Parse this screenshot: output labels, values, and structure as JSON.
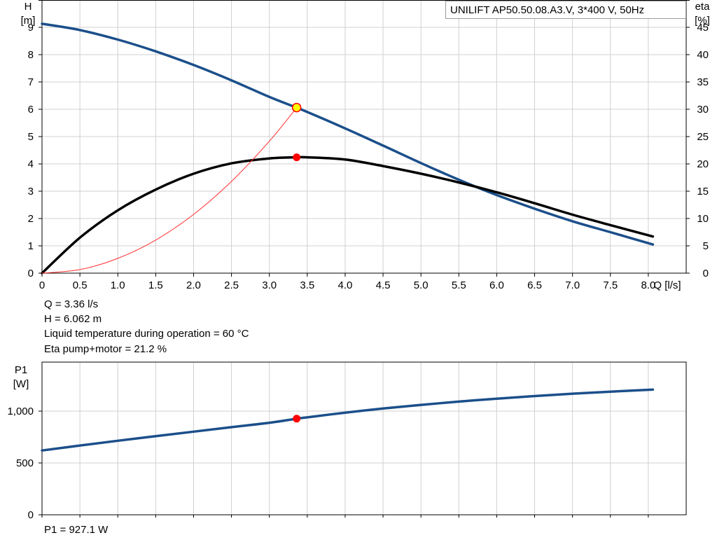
{
  "legend": {
    "pump_label": "UNILIFT  AP50.50.08.A3.V,  3*400 V,  50Hz"
  },
  "info": {
    "q": "Q = 3.36 l/s",
    "h": "H = 6.062 m",
    "temp": "Liquid temperature during operation = 60 °C",
    "eta": "Eta pump+motor = 21.2 %",
    "p1": "P1 = 927.1 W"
  },
  "colors": {
    "head": "#1b4f8a",
    "efficiency": "#000000",
    "system": "#ff3030",
    "grid": "#d0d0d0",
    "duty_marker": "#ff0000",
    "duty_head_marker": "#ffff00"
  },
  "chart_data": [
    {
      "type": "line",
      "name": "head-efficiency",
      "x_label_text": "Q [l/s]",
      "y_left_label_line1": "H",
      "y_left_label_line2": "[m]",
      "y_right_label_line1": "eta",
      "y_right_label_line2": "[%]",
      "xlim": [
        0,
        8.5
      ],
      "ylim_left": [
        0,
        10
      ],
      "ylim_right": [
        0,
        50
      ],
      "x_ticks": [
        0,
        0.5,
        1.0,
        1.5,
        2.0,
        2.5,
        3.0,
        3.5,
        4.0,
        4.5,
        5.0,
        5.5,
        6.0,
        6.5,
        7.0,
        7.5,
        8.0
      ],
      "x_tick_labels": [
        "0",
        "0.5",
        "1.0",
        "1.5",
        "2.0",
        "2.5",
        "3.0",
        "3.5",
        "4.0",
        "4.5",
        "5.0",
        "5.5",
        "6.0",
        "6.5",
        "7.0",
        "7.5",
        "8.0"
      ],
      "y_left_ticks": [
        0,
        1,
        2,
        3,
        4,
        5,
        6,
        7,
        8,
        9
      ],
      "y_left_tick_labels": [
        "0",
        "1",
        "2",
        "3",
        "4",
        "5",
        "6",
        "7",
        "8",
        "9"
      ],
      "y_right_ticks": [
        0,
        5,
        10,
        15,
        20,
        25,
        30,
        35,
        40,
        45
      ],
      "y_right_tick_labels": [
        "0",
        "5",
        "10",
        "15",
        "20",
        "25",
        "30",
        "35",
        "40",
        "45"
      ],
      "grid": true,
      "series": [
        {
          "role": "head",
          "axis": "left",
          "x": [
            0,
            0.5,
            1.0,
            1.5,
            2.0,
            2.5,
            3.0,
            3.36,
            3.5,
            4.0,
            4.5,
            5.0,
            5.5,
            6.0,
            6.5,
            7.0,
            7.5,
            8.06
          ],
          "y": [
            9.13,
            8.9,
            8.55,
            8.12,
            7.62,
            7.06,
            6.45,
            6.06,
            5.9,
            5.3,
            4.67,
            4.03,
            3.42,
            2.86,
            2.36,
            1.9,
            1.5,
            1.05
          ]
        },
        {
          "role": "efficiency",
          "axis": "right",
          "x": [
            0,
            0.5,
            1.0,
            1.5,
            2.0,
            2.5,
            3.0,
            3.36,
            3.5,
            4.0,
            4.5,
            5.0,
            5.5,
            6.0,
            6.5,
            7.0,
            7.5,
            8.06
          ],
          "y": [
            0,
            6.5,
            11.5,
            15.3,
            18.2,
            20.1,
            21.0,
            21.2,
            21.2,
            20.8,
            19.6,
            18.2,
            16.6,
            14.8,
            12.8,
            10.7,
            8.8,
            6.7
          ]
        },
        {
          "role": "system",
          "axis": "left",
          "x": [
            0,
            0.5,
            1.0,
            1.5,
            2.0,
            2.5,
            3.0,
            3.36
          ],
          "y": [
            0,
            0.13,
            0.54,
            1.21,
            2.15,
            3.36,
            4.83,
            6.06
          ]
        }
      ],
      "duty_point": {
        "q": 3.36,
        "h": 6.062,
        "eta": 21.2
      }
    },
    {
      "type": "line",
      "name": "power",
      "y_label_line1": "P1",
      "y_label_line2": "[W]",
      "xlim": [
        0,
        8.5
      ],
      "ylim": [
        0,
        1000
      ],
      "x_ticks": [
        0,
        0.5,
        1.0,
        1.5,
        2.0,
        2.5,
        3.0,
        3.5,
        4.0,
        4.5,
        5.0,
        5.5,
        6.0,
        6.5,
        7.0,
        7.5,
        8.0
      ],
      "y_ticks": [
        0,
        500,
        1000
      ],
      "y_tick_labels": [
        "0",
        "500",
        "1,000"
      ],
      "grid": true,
      "series": [
        {
          "role": "power",
          "x": [
            0,
            0.5,
            1.0,
            1.5,
            2.0,
            2.5,
            3.0,
            3.36,
            3.5,
            4.0,
            4.5,
            5.0,
            5.5,
            6.0,
            6.5,
            7.0,
            7.5,
            8.06
          ],
          "y": [
            620,
            668,
            714,
            758,
            802,
            845,
            888,
            927,
            940,
            985,
            1025,
            1060,
            1092,
            1120,
            1145,
            1168,
            1188,
            1208
          ]
        }
      ],
      "duty_point": {
        "q": 3.36,
        "p1": 927.1
      }
    }
  ]
}
